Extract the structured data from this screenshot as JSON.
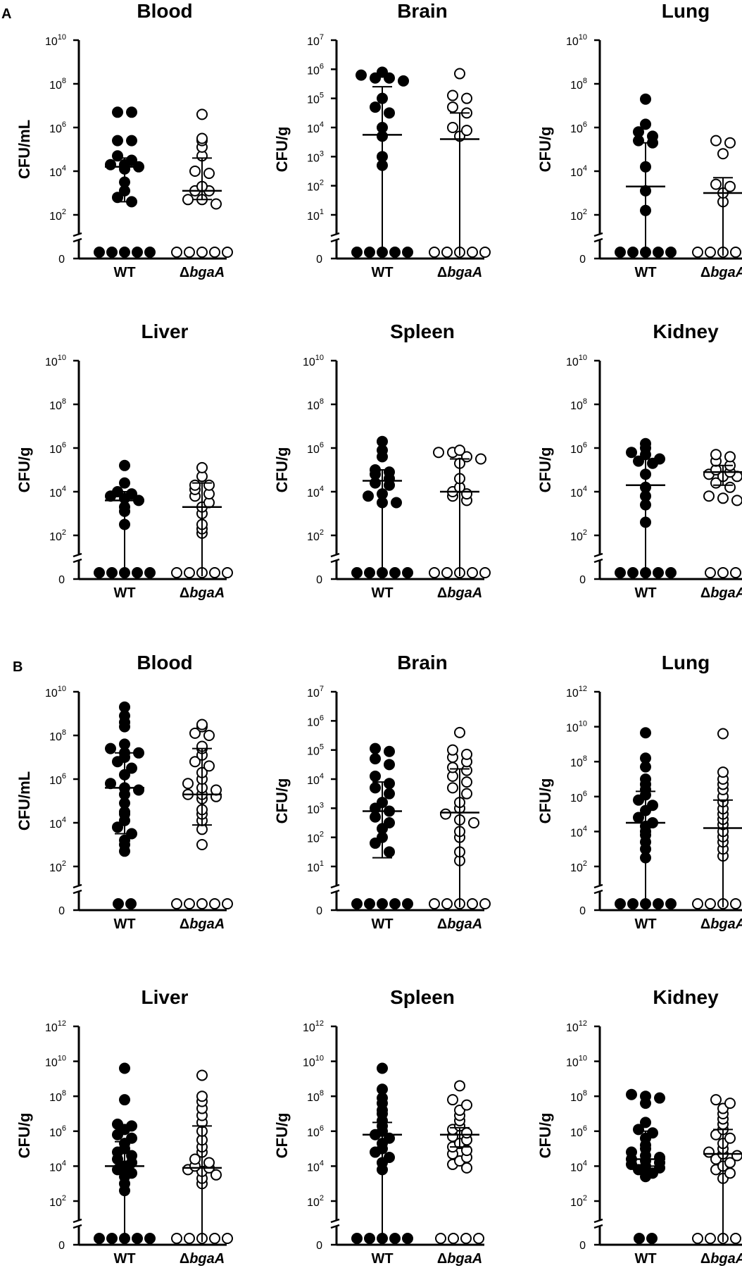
{
  "figure": {
    "panel_labels": [
      "A",
      "B"
    ],
    "group_labels": [
      "WT",
      "Δ",
      "bgaA"
    ]
  },
  "chart_data": [
    {
      "id": "A-blood",
      "type": "scatter",
      "title": "Blood",
      "ylabel": "CFU/mL",
      "categories": [
        "WT",
        "ΔbgaA"
      ],
      "ylim_exp": [
        0,
        10
      ],
      "tick_exps": [
        2,
        4,
        6,
        8,
        10
      ],
      "zero_label": "0",
      "series": [
        {
          "name": "WT",
          "filled": true,
          "median_exp": 4.2,
          "whisker_exp": [
            2.6,
            4.6
          ],
          "points_exp": [
            6.7,
            6.7,
            5.4,
            5.4,
            4.7,
            4.5,
            4.3,
            4.3,
            4.2,
            4.1,
            3.5,
            3.1,
            2.8,
            2.6,
            null,
            null,
            null,
            null,
            null
          ]
        },
        {
          "name": "ΔbgaA",
          "filled": false,
          "median_exp": 3.1,
          "whisker_exp": [
            2.7,
            4.6
          ],
          "points_exp": [
            6.6,
            5.5,
            5.4,
            5.1,
            4.7,
            4.0,
            3.9,
            3.3,
            3.1,
            3.1,
            2.7,
            2.7,
            2.5,
            null,
            null,
            null,
            null,
            null
          ]
        }
      ]
    },
    {
      "id": "A-brain",
      "type": "scatter",
      "title": "Brain",
      "ylabel": "CFU/g",
      "categories": [
        "WT",
        "ΔbgaA"
      ],
      "ylim_exp": [
        0,
        7
      ],
      "tick_exps": [
        1,
        2,
        3,
        4,
        5,
        6,
        7
      ],
      "zero_label": "0",
      "series": [
        {
          "name": "WT",
          "filled": true,
          "median_exp": 3.75,
          "whisker_exp": [
            0,
            5.4
          ],
          "points_exp": [
            5.9,
            5.8,
            5.7,
            5.7,
            5.6,
            5.0,
            4.7,
            4.5,
            4.0,
            3.7,
            3.0,
            2.7,
            null,
            null,
            null,
            null,
            null,
            null
          ]
        },
        {
          "name": "ΔbgaA",
          "filled": false,
          "median_exp": 3.6,
          "whisker_exp": [
            0,
            4.5
          ],
          "points_exp": [
            5.85,
            5.1,
            5.0,
            4.7,
            4.5,
            4.0,
            3.9,
            3.7,
            null,
            null,
            null,
            null,
            null,
            null,
            null
          ]
        }
      ]
    },
    {
      "id": "A-lung",
      "type": "scatter",
      "title": "Lung",
      "ylabel": "CFU/g",
      "categories": [
        "WT",
        "ΔbgaA"
      ],
      "ylim_exp": [
        0,
        10
      ],
      "tick_exps": [
        2,
        4,
        6,
        8,
        10
      ],
      "zero_label": "0",
      "series": [
        {
          "name": "WT",
          "filled": true,
          "median_exp": 3.3,
          "whisker_exp": [
            0,
            5.3
          ],
          "points_exp": [
            7.3,
            6.15,
            5.8,
            5.6,
            5.4,
            5.3,
            4.2,
            3.1,
            2.2,
            null,
            null,
            null,
            null,
            null,
            null,
            null,
            null,
            null
          ]
        },
        {
          "name": "ΔbgaA",
          "filled": false,
          "median_exp": 3.0,
          "whisker_exp": [
            0,
            3.7
          ],
          "points_exp": [
            5.4,
            5.3,
            4.8,
            3.4,
            3.3,
            3.0,
            2.6,
            null,
            null,
            null,
            null,
            null,
            null,
            null,
            null,
            null,
            null,
            null
          ]
        }
      ]
    },
    {
      "id": "A-liver",
      "type": "scatter",
      "title": "Liver",
      "ylabel": "CFU/g",
      "categories": [
        "WT",
        "ΔbgaA"
      ],
      "ylim_exp": [
        0,
        10
      ],
      "tick_exps": [
        2,
        4,
        6,
        8,
        10
      ],
      "zero_label": "0",
      "series": [
        {
          "name": "WT",
          "filled": true,
          "median_exp": 3.6,
          "whisker_exp": [
            0,
            4.0
          ],
          "points_exp": [
            5.2,
            4.4,
            4.0,
            3.9,
            3.8,
            3.7,
            3.6,
            3.3,
            3.1,
            2.5,
            null,
            null,
            null,
            null,
            null,
            null,
            null
          ]
        },
        {
          "name": "ΔbgaA",
          "filled": false,
          "median_exp": 3.3,
          "whisker_exp": [
            0,
            4.4
          ],
          "points_exp": [
            5.1,
            4.7,
            4.3,
            4.3,
            4.1,
            3.9,
            3.8,
            3.5,
            3.3,
            3.0,
            2.5,
            2.3,
            2.1,
            null,
            null,
            null,
            null,
            null,
            null,
            null,
            null
          ]
        }
      ]
    },
    {
      "id": "A-spleen",
      "type": "scatter",
      "title": "Spleen",
      "ylabel": "CFU/g",
      "categories": [
        "WT",
        "ΔbgaA"
      ],
      "ylim_exp": [
        0,
        10
      ],
      "tick_exps": [
        2,
        4,
        6,
        8,
        10
      ],
      "zero_label": "0",
      "series": [
        {
          "name": "WT",
          "filled": true,
          "median_exp": 4.5,
          "whisker_exp": [
            0,
            5.0
          ],
          "points_exp": [
            6.3,
            5.9,
            5.6,
            5.0,
            4.9,
            4.8,
            4.6,
            4.4,
            4.3,
            3.9,
            3.8,
            3.5,
            3.5,
            null,
            null,
            null,
            null,
            null
          ]
        },
        {
          "name": "ΔbgaA",
          "filled": false,
          "median_exp": 4.0,
          "whisker_exp": [
            0,
            5.5
          ],
          "points_exp": [
            5.9,
            5.8,
            5.8,
            5.6,
            5.5,
            5.3,
            4.6,
            4.2,
            4.0,
            3.9,
            3.8,
            3.6,
            null,
            null,
            null,
            null,
            null
          ]
        }
      ]
    },
    {
      "id": "A-kidney",
      "type": "scatter",
      "title": "Kidney",
      "ylabel": "CFU/g",
      "categories": [
        "WT",
        "ΔbgaA"
      ],
      "ylim_exp": [
        0,
        10
      ],
      "tick_exps": [
        2,
        4,
        6,
        8,
        10
      ],
      "zero_label": "0",
      "series": [
        {
          "name": "WT",
          "filled": true,
          "median_exp": 4.3,
          "whisker_exp": [
            0,
            5.5
          ],
          "points_exp": [
            6.2,
            6.0,
            5.8,
            5.7,
            5.5,
            5.4,
            5.3,
            4.8,
            4.2,
            3.8,
            3.4,
            2.6,
            null,
            null,
            null,
            null,
            null
          ]
        },
        {
          "name": "ΔbgaA",
          "filled": false,
          "median_exp": 4.9,
          "whisker_exp": [
            4.3,
            5.2
          ],
          "points_exp": [
            5.7,
            5.6,
            5.4,
            5.2,
            5.0,
            4.9,
            4.8,
            4.7,
            4.7,
            4.4,
            4.2,
            3.8,
            3.7,
            3.6,
            null,
            null,
            null
          ]
        }
      ]
    },
    {
      "id": "B-blood",
      "type": "scatter",
      "title": "Blood",
      "ylabel": "CFU/mL",
      "categories": [
        "WT",
        "ΔbgaA"
      ],
      "ylim_exp": [
        0,
        10
      ],
      "tick_exps": [
        2,
        4,
        6,
        8,
        10
      ],
      "zero_label": "0",
      "series": [
        {
          "name": "WT",
          "filled": true,
          "median_exp": 5.6,
          "whisker_exp": [
            3.5,
            7.2
          ],
          "points_exp": [
            9.3,
            8.9,
            8.6,
            8.4,
            7.6,
            7.4,
            7.2,
            7.2,
            7.0,
            6.8,
            6.5,
            6.2,
            5.8,
            5.6,
            5.5,
            5.3,
            4.9,
            4.5,
            4.4,
            4.1,
            3.8,
            3.5,
            3.2,
            3.0,
            2.7,
            null,
            null
          ]
        },
        {
          "name": "ΔbgaA",
          "filled": false,
          "median_exp": 5.3,
          "whisker_exp": [
            3.9,
            7.4
          ],
          "points_exp": [
            8.5,
            8.4,
            8.1,
            8.0,
            7.5,
            7.4,
            7.1,
            6.8,
            6.6,
            6.3,
            6.0,
            5.8,
            5.6,
            5.5,
            5.3,
            5.3,
            5.2,
            5.1,
            4.6,
            4.4,
            4.1,
            3.7,
            3.0,
            null,
            null,
            null,
            null,
            null
          ]
        }
      ]
    },
    {
      "id": "B-brain",
      "type": "scatter",
      "title": "Brain",
      "ylabel": "CFU/g",
      "categories": [
        "WT",
        "ΔbgaA"
      ],
      "ylim_exp": [
        0,
        7
      ],
      "tick_exps": [
        1,
        2,
        3,
        4,
        5,
        6,
        7
      ],
      "zero_label": "0",
      "series": [
        {
          "name": "WT",
          "filled": true,
          "median_exp": 2.9,
          "whisker_exp": [
            1.3,
            3.9
          ],
          "points_exp": [
            5.05,
            4.95,
            4.7,
            4.5,
            4.1,
            3.85,
            3.7,
            3.5,
            3.2,
            3.0,
            2.9,
            2.7,
            2.5,
            2.3,
            2.0,
            1.8,
            1.5,
            null,
            null,
            null,
            null,
            null,
            null
          ]
        },
        {
          "name": "ΔbgaA",
          "filled": false,
          "median_exp": 2.85,
          "whisker_exp": [
            0,
            4.35
          ],
          "points_exp": [
            5.6,
            5.0,
            4.85,
            4.75,
            4.6,
            4.4,
            4.3,
            4.1,
            3.9,
            3.7,
            3.5,
            3.2,
            3.0,
            2.8,
            2.6,
            2.5,
            2.2,
            2.0,
            1.5,
            1.2,
            null,
            null,
            null,
            null,
            null
          ]
        }
      ]
    },
    {
      "id": "B-lung",
      "type": "scatter",
      "title": "Lung",
      "ylabel": "CFU/g",
      "categories": [
        "WT",
        "ΔbgaA"
      ],
      "ylim_exp": [
        0,
        12
      ],
      "tick_exps": [
        2,
        4,
        6,
        8,
        10,
        12
      ],
      "zero_label": "0",
      "series": [
        {
          "name": "WT",
          "filled": true,
          "median_exp": 4.5,
          "whisker_exp": [
            0,
            6.3
          ],
          "points_exp": [
            9.65,
            8.2,
            7.7,
            7.0,
            6.7,
            6.4,
            6.1,
            5.8,
            5.5,
            5.2,
            4.8,
            4.5,
            4.3,
            4.0,
            3.8,
            3.4,
            3.0,
            2.5,
            null,
            null,
            null,
            null,
            null
          ]
        },
        {
          "name": "ΔbgaA",
          "filled": false,
          "median_exp": 4.2,
          "whisker_exp": [
            0,
            5.8
          ],
          "points_exp": [
            9.6,
            7.4,
            7.0,
            6.7,
            6.4,
            6.0,
            5.7,
            5.3,
            5.0,
            4.7,
            4.4,
            4.0,
            3.7,
            3.4,
            3.0,
            2.6,
            null,
            null,
            null,
            null,
            null,
            null,
            null,
            null
          ]
        }
      ]
    },
    {
      "id": "B-liver",
      "type": "scatter",
      "title": "Liver",
      "ylabel": "CFU/g",
      "categories": [
        "WT",
        "ΔbgaA"
      ],
      "ylim_exp": [
        0,
        12
      ],
      "tick_exps": [
        2,
        4,
        6,
        8,
        10,
        12
      ],
      "zero_label": "0",
      "series": [
        {
          "name": "WT",
          "filled": true,
          "median_exp": 4.0,
          "whisker_exp": [
            0,
            5.4
          ],
          "points_exp": [
            9.6,
            7.8,
            6.4,
            6.3,
            6.1,
            5.8,
            5.6,
            5.3,
            5.0,
            4.8,
            4.6,
            4.4,
            4.2,
            4.0,
            3.8,
            3.6,
            3.4,
            3.0,
            2.6,
            null,
            null,
            null,
            null,
            null
          ]
        },
        {
          "name": "ΔbgaA",
          "filled": false,
          "median_exp": 3.9,
          "whisker_exp": [
            0,
            6.3
          ],
          "points_exp": [
            9.2,
            8.0,
            7.7,
            7.3,
            6.9,
            6.5,
            6.0,
            5.5,
            5.1,
            4.8,
            4.4,
            4.2,
            4.0,
            3.9,
            3.8,
            3.7,
            3.5,
            3.3,
            3.0,
            null,
            null,
            null,
            null,
            null
          ]
        }
      ]
    },
    {
      "id": "B-spleen",
      "type": "scatter",
      "title": "Spleen",
      "ylabel": "CFU/g",
      "categories": [
        "WT",
        "ΔbgaA"
      ],
      "ylim_exp": [
        0,
        12
      ],
      "tick_exps": [
        2,
        4,
        6,
        8,
        10,
        12
      ],
      "zero_label": "0",
      "series": [
        {
          "name": "WT",
          "filled": true,
          "median_exp": 5.8,
          "whisker_exp": [
            0,
            6.5
          ],
          "points_exp": [
            9.6,
            8.4,
            7.9,
            7.6,
            7.2,
            7.0,
            6.6,
            6.3,
            6.0,
            5.8,
            5.6,
            5.3,
            5.0,
            4.8,
            4.5,
            4.2,
            3.8,
            null,
            null,
            null,
            null,
            null,
            null,
            null
          ]
        },
        {
          "name": "ΔbgaA",
          "filled": false,
          "median_exp": 5.8,
          "whisker_exp": [
            5.1,
            6.2
          ],
          "points_exp": [
            8.6,
            7.8,
            7.5,
            7.2,
            6.9,
            6.6,
            6.3,
            6.1,
            5.9,
            5.7,
            5.5,
            5.3,
            5.1,
            4.9,
            4.7,
            4.5,
            4.3,
            4.1,
            3.9,
            null,
            null,
            null,
            null
          ]
        }
      ]
    },
    {
      "id": "B-kidney",
      "type": "scatter",
      "title": "Kidney",
      "ylabel": "CFU/g",
      "categories": [
        "WT",
        "ΔbgaA"
      ],
      "ylim_exp": [
        0,
        12
      ],
      "tick_exps": [
        2,
        4,
        6,
        8,
        10,
        12
      ],
      "zero_label": "0",
      "series": [
        {
          "name": "WT",
          "filled": true,
          "median_exp": 4.4,
          "whisker_exp": [
            4.0,
            6.0
          ],
          "points_exp": [
            8.1,
            8.0,
            7.9,
            7.6,
            6.5,
            6.1,
            5.9,
            5.6,
            5.2,
            5.0,
            4.8,
            4.6,
            4.5,
            4.4,
            4.3,
            4.2,
            4.1,
            4.0,
            3.9,
            3.8,
            3.6,
            3.4,
            null,
            null
          ]
        },
        {
          "name": "ΔbgaA",
          "filled": false,
          "median_exp": 4.7,
          "whisker_exp": [
            0,
            6.1
          ],
          "points_exp": [
            7.8,
            7.6,
            7.3,
            7.0,
            6.7,
            6.4,
            6.1,
            5.8,
            5.6,
            5.3,
            5.0,
            4.8,
            4.7,
            4.6,
            4.4,
            4.2,
            4.0,
            3.8,
            3.6,
            3.3,
            null,
            null,
            null,
            null,
            null
          ]
        }
      ]
    }
  ]
}
